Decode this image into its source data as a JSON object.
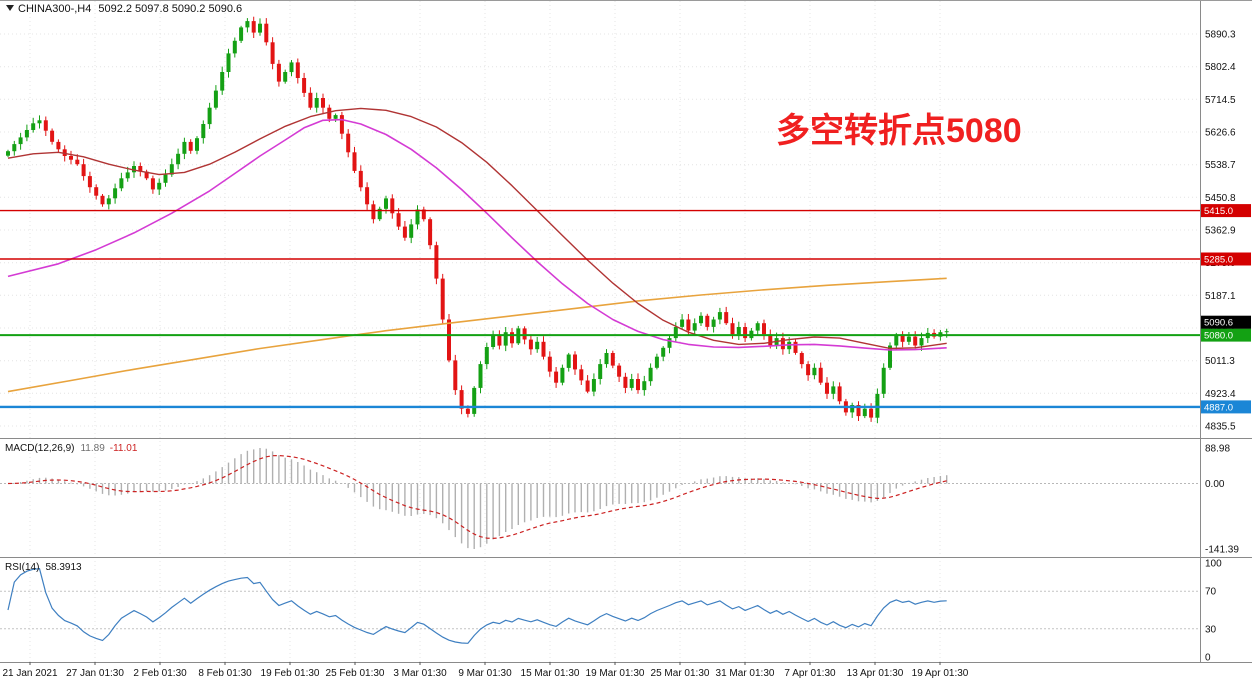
{
  "header": {
    "symbol": "CHINA300-,H4",
    "ohlc": "5092.2 5097.8 5090.2 5090.6"
  },
  "annotation": {
    "text": "多空转折点5080",
    "color": "#f02020"
  },
  "macd_panel": {
    "title": "MACD(12,26,9)",
    "main": "11.89",
    "signal": "-11.01"
  },
  "rsi_panel": {
    "title": "RSI(14)",
    "value": "58.3913"
  },
  "chart_data": {
    "type": "candlestick",
    "symbol": "CHINA300-",
    "timeframe": "H4",
    "last_ohlc": {
      "open": 5092.2,
      "high": 5097.8,
      "low": 5090.2,
      "close": 5090.6
    },
    "price_axis_values": [
      5890.3,
      5802.4,
      5714.5,
      5626.6,
      5538.7,
      5450.8,
      5362.9,
      5275.0,
      5187.1,
      5099.2,
      5011.3,
      4923.4,
      4835.5
    ],
    "time_labels": [
      "21 Jan 2021",
      "27 Jan 01:30",
      "2 Feb 01:30",
      "8 Feb 01:30",
      "19 Feb 01:30",
      "25 Feb 01:30",
      "3 Mar 01:30",
      "9 Mar 01:30",
      "15 Mar 01:30",
      "19 Mar 01:30",
      "25 Mar 01:30",
      "31 Mar 01:30",
      "7 Apr 01:30",
      "13 Apr 01:30",
      "19 Apr 01:30"
    ],
    "candles_close": [
      5575,
      5594,
      5612,
      5632,
      5650,
      5658,
      5630,
      5600,
      5580,
      5562,
      5552,
      5540,
      5508,
      5478,
      5455,
      5432,
      5448,
      5475,
      5502,
      5518,
      5535,
      5520,
      5502,
      5472,
      5490,
      5512,
      5540,
      5568,
      5600,
      5576,
      5610,
      5648,
      5692,
      5738,
      5788,
      5838,
      5872,
      5908,
      5925,
      5894,
      5918,
      5868,
      5810,
      5762,
      5788,
      5814,
      5772,
      5732,
      5692,
      5718,
      5692,
      5662,
      5672,
      5622,
      5572,
      5522,
      5478,
      5432,
      5392,
      5420,
      5448,
      5408,
      5372,
      5342,
      5378,
      5418,
      5392,
      5322,
      5232,
      5122,
      5012,
      4932,
      4882,
      4868,
      4938,
      5002,
      5048,
      5078,
      5052,
      5088,
      5058,
      5098,
      5068,
      5042,
      5062,
      5022,
      4982,
      4952,
      4992,
      5028,
      4988,
      4958,
      4928,
      4962,
      5002,
      5032,
      4998,
      4968,
      4938,
      4962,
      4932,
      4956,
      4992,
      5022,
      5046,
      5072,
      5102,
      5122,
      5092,
      5112,
      5132,
      5102,
      5122,
      5142,
      5112,
      5082,
      5102,
      5072,
      5092,
      5112,
      5082,
      5052,
      5072,
      5042,
      5062,
      5032,
      5002,
      4972,
      4992,
      4952,
      4922,
      4942,
      4902,
      4872,
      4892,
      4862,
      4882,
      4858,
      4922,
      4992,
      5052,
      5082,
      5062,
      5076,
      5052,
      5072,
      5086,
      5076,
      5088,
      5090.6
    ],
    "overlays": [
      {
        "name": "ma-slow-orange",
        "color": "#e8a33d",
        "width": 1.6,
        "points": [
          [
            0,
            4928
          ],
          [
            10,
            4958
          ],
          [
            20,
            4988
          ],
          [
            30,
            5016
          ],
          [
            40,
            5044
          ],
          [
            50,
            5068
          ],
          [
            55,
            5080
          ],
          [
            60,
            5092
          ],
          [
            70,
            5112
          ],
          [
            80,
            5132
          ],
          [
            90,
            5152
          ],
          [
            100,
            5172
          ],
          [
            110,
            5188
          ],
          [
            120,
            5202
          ],
          [
            130,
            5214
          ],
          [
            140,
            5224
          ],
          [
            149,
            5233
          ]
        ]
      },
      {
        "name": "ma-medium-magenta",
        "color": "#d43bd4",
        "width": 1.6,
        "points": [
          [
            0,
            5238
          ],
          [
            8,
            5272
          ],
          [
            14,
            5310
          ],
          [
            20,
            5355
          ],
          [
            26,
            5408
          ],
          [
            32,
            5468
          ],
          [
            36,
            5515
          ],
          [
            40,
            5562
          ],
          [
            44,
            5605
          ],
          [
            47,
            5638
          ],
          [
            50,
            5658
          ],
          [
            53,
            5660
          ],
          [
            56,
            5648
          ],
          [
            60,
            5620
          ],
          [
            64,
            5580
          ],
          [
            68,
            5530
          ],
          [
            72,
            5472
          ],
          [
            76,
            5408
          ],
          [
            80,
            5342
          ],
          [
            84,
            5278
          ],
          [
            88,
            5218
          ],
          [
            92,
            5165
          ],
          [
            96,
            5122
          ],
          [
            100,
            5090
          ],
          [
            104,
            5068
          ],
          [
            108,
            5055
          ],
          [
            112,
            5048
          ],
          [
            116,
            5047
          ],
          [
            120,
            5050
          ],
          [
            124,
            5054
          ],
          [
            128,
            5055
          ],
          [
            132,
            5051
          ],
          [
            136,
            5045
          ],
          [
            140,
            5040
          ],
          [
            144,
            5041
          ],
          [
            149,
            5046
          ]
        ]
      },
      {
        "name": "ma-fast-darkred",
        "color": "#b03434",
        "width": 1.4,
        "points": [
          [
            0,
            5556
          ],
          [
            4,
            5568
          ],
          [
            8,
            5572
          ],
          [
            12,
            5560
          ],
          [
            16,
            5540
          ],
          [
            20,
            5524
          ],
          [
            24,
            5512
          ],
          [
            28,
            5518
          ],
          [
            32,
            5540
          ],
          [
            36,
            5572
          ],
          [
            40,
            5608
          ],
          [
            44,
            5642
          ],
          [
            48,
            5668
          ],
          [
            52,
            5684
          ],
          [
            56,
            5690
          ],
          [
            60,
            5685
          ],
          [
            64,
            5668
          ],
          [
            68,
            5640
          ],
          [
            72,
            5598
          ],
          [
            76,
            5545
          ],
          [
            80,
            5482
          ],
          [
            84,
            5415
          ],
          [
            88,
            5348
          ],
          [
            92,
            5282
          ],
          [
            96,
            5220
          ],
          [
            100,
            5165
          ],
          [
            104,
            5120
          ],
          [
            108,
            5088
          ],
          [
            112,
            5066
          ],
          [
            116,
            5055
          ],
          [
            120,
            5058
          ],
          [
            124,
            5068
          ],
          [
            128,
            5075
          ],
          [
            132,
            5072
          ],
          [
            136,
            5058
          ],
          [
            140,
            5044
          ],
          [
            144,
            5046
          ],
          [
            149,
            5058
          ]
        ]
      }
    ],
    "levels": [
      {
        "value": 5415.0,
        "color": "#d40000",
        "width": 1.4
      },
      {
        "value": 5285.0,
        "color": "#d40000",
        "width": 1.4
      },
      {
        "value": 5080.0,
        "color": "#13a113",
        "width": 2
      },
      {
        "value": 4887.0,
        "color": "#1b86d6",
        "width": 2.4
      }
    ],
    "current_price": {
      "value": 5090.6,
      "color": "#000000"
    },
    "colors": {
      "up": "#14a014",
      "down": "#e21414",
      "macd_hist": "#b0b0b0",
      "macd_signal": "#cc2222",
      "rsi_line": "#3e7fc1"
    },
    "indicators": {
      "macd": {
        "params": "12,26,9",
        "value_main": 11.89,
        "value_signal": -11.01,
        "axis": [
          88.98,
          0,
          -141.39
        ]
      },
      "rsi": {
        "params": "14",
        "value": 58.3913,
        "axis": [
          100,
          70,
          30,
          0
        ]
      }
    },
    "annotation": {
      "text": "多空转折点5080"
    }
  }
}
